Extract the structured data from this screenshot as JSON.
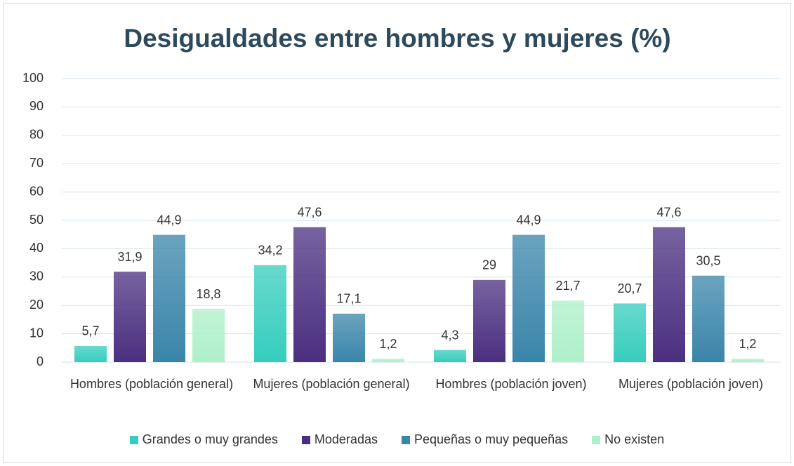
{
  "chart_data": {
    "type": "bar",
    "title": "Desigualdades entre hombres y mujeres (%)",
    "categories": [
      "Hombres (población general)",
      "Mujeres (población general)",
      "Hombres (población joven)",
      "Mujeres (población joven)"
    ],
    "series": [
      {
        "name": "Grandes o muy grandes",
        "color": "#36cdbd",
        "values": [
          5.7,
          34.2,
          4.3,
          20.7
        ],
        "value_labels": [
          "5,7",
          "34,2",
          "4,3",
          "20,7"
        ]
      },
      {
        "name": "Moderadas",
        "color": "#4a2f80",
        "values": [
          31.9,
          47.6,
          29,
          47.6
        ],
        "value_labels": [
          "31,9",
          "47,6",
          "29",
          "47,6"
        ]
      },
      {
        "name": "Pequeñas o muy pequeñas",
        "color": "#3a85aa",
        "values": [
          44.9,
          17.1,
          44.9,
          30.5
        ],
        "value_labels": [
          "44,9",
          "17,1",
          "44,9",
          "30,5"
        ]
      },
      {
        "name": "No existen",
        "color": "#aef0c8",
        "values": [
          18.8,
          1.2,
          21.7,
          1.2
        ],
        "value_labels": [
          "18,8",
          "1,2",
          "21,7",
          "1,2"
        ]
      }
    ],
    "ylim": [
      0,
      100
    ],
    "yticks": [
      0,
      10,
      20,
      30,
      40,
      50,
      60,
      70,
      80,
      90,
      100
    ],
    "grid": true,
    "legend": "bottom"
  }
}
